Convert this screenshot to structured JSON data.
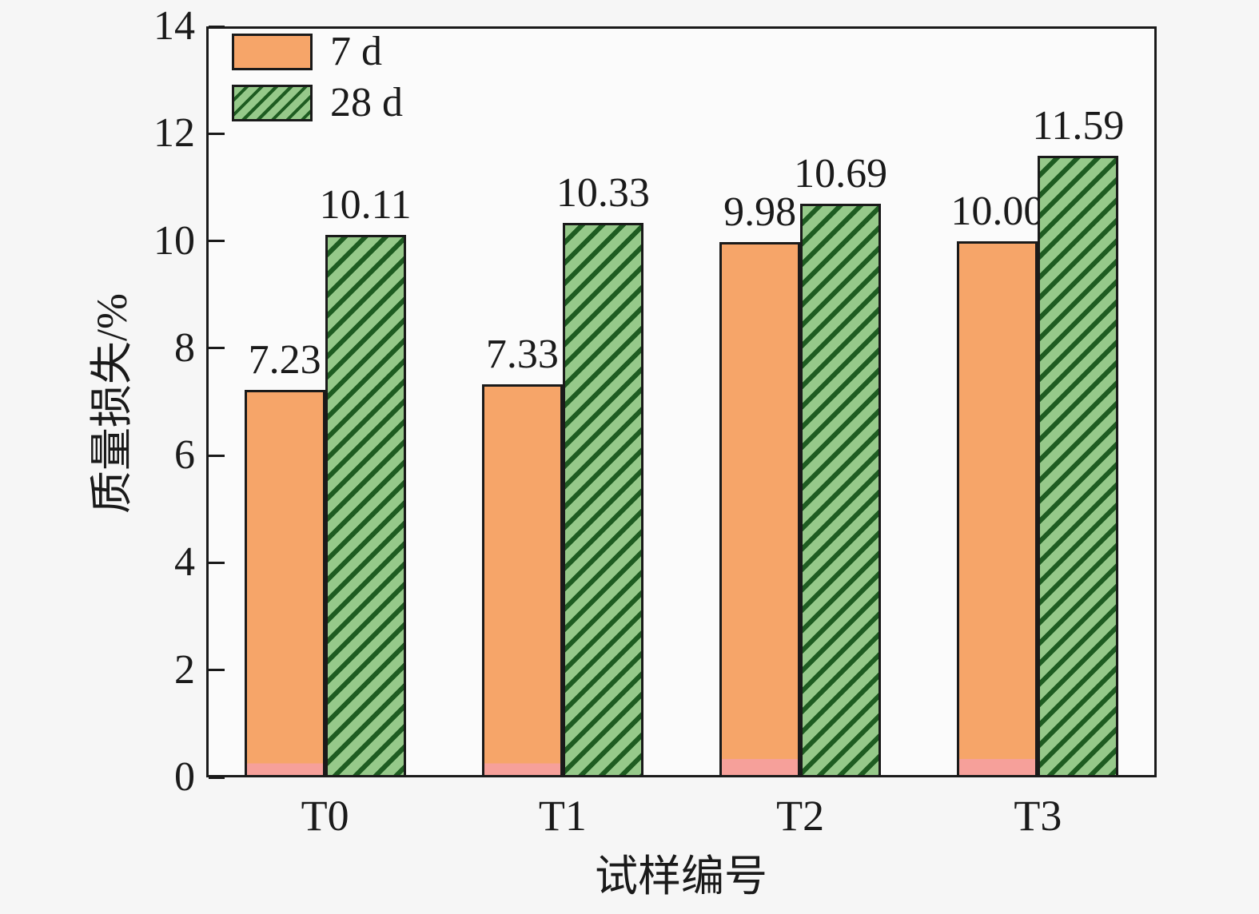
{
  "chart_data": {
    "type": "bar",
    "title": "",
    "xlabel": "试样编号",
    "ylabel": "质量损失/%",
    "categories": [
      "T0",
      "T1",
      "T2",
      "T3"
    ],
    "series": [
      {
        "name": "7 d",
        "values": [
          7.23,
          7.33,
          9.98,
          10.0
        ],
        "labels": [
          "7.23",
          "7.33",
          "9.98",
          "10.00"
        ],
        "fill": "#F6A569",
        "fill_bottom": "#F6A09A",
        "hatch": "none"
      },
      {
        "name": "28 d",
        "values": [
          10.11,
          10.33,
          10.69,
          11.59
        ],
        "labels": [
          "10.11",
          "10.33",
          "10.69",
          "11.59"
        ],
        "fill": "#96C98A",
        "hatch": "diagonal-forward",
        "hatch_color": "#1E5C21"
      }
    ],
    "ylim": [
      0,
      14
    ],
    "yticks": [
      "0",
      "2",
      "4",
      "6",
      "8",
      "10",
      "12",
      "14"
    ],
    "grid": false,
    "legend_position": "top-left",
    "colors": {
      "axis": "#1A1A1A",
      "text": "#1A1A1A",
      "page_background": "#F6F6F6",
      "plot_background": "#FBFBFB"
    }
  }
}
